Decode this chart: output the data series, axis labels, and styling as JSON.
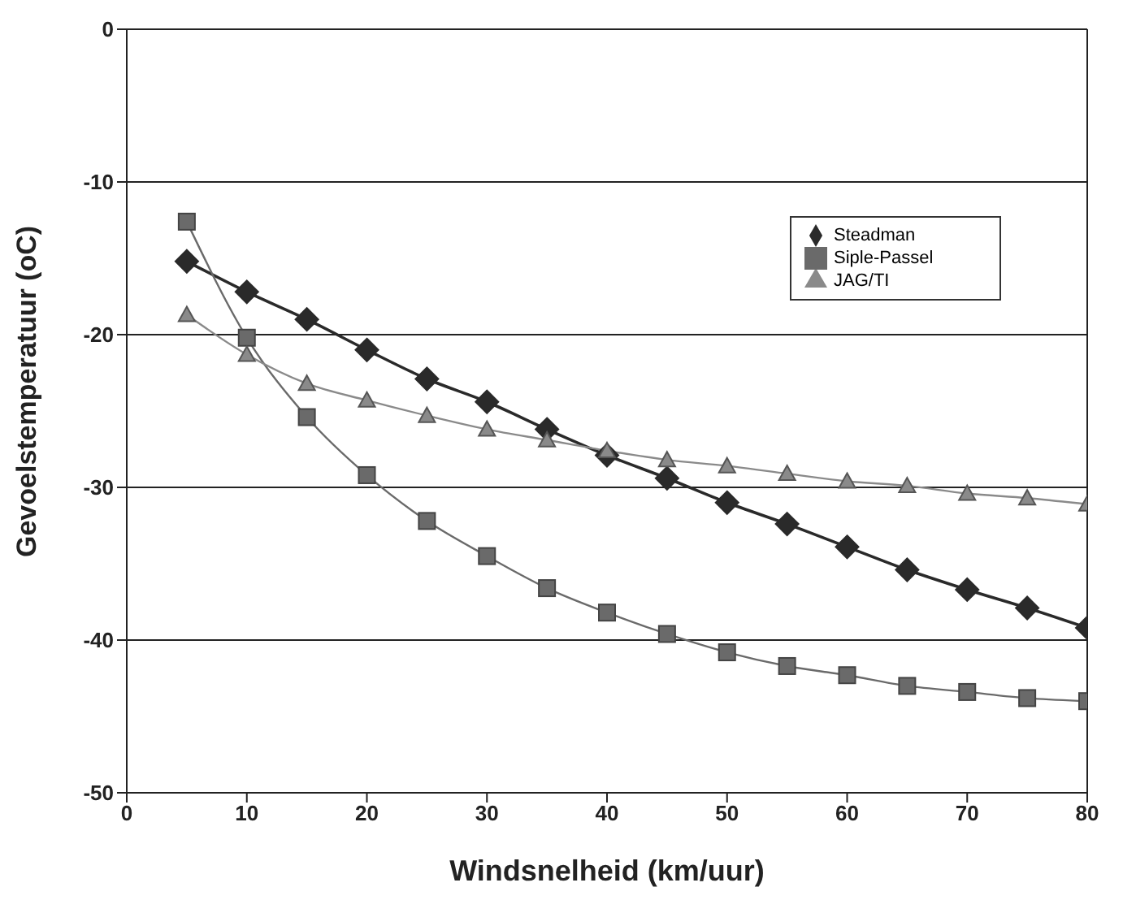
{
  "chart_data": {
    "type": "line",
    "xlabel": "Windsnelheid (km/uur)",
    "ylabel": "Gevoelstemperatuur (oC)",
    "x": [
      5,
      10,
      15,
      20,
      25,
      30,
      35,
      40,
      45,
      50,
      55,
      60,
      65,
      70,
      75,
      80
    ],
    "series": [
      {
        "name": "Steadman",
        "color": "#2a2a2a",
        "marker": "diamond",
        "values": [
          -15.2,
          -17.2,
          -19.0,
          -21.0,
          -22.9,
          -24.4,
          -26.2,
          -27.9,
          -29.4,
          -31.0,
          -32.4,
          -33.9,
          -35.4,
          -36.7,
          -37.9,
          -39.2
        ]
      },
      {
        "name": "Siple-Passel",
        "color": "#6a6a6a",
        "marker": "square",
        "values": [
          -12.6,
          -20.2,
          -25.4,
          -29.2,
          -32.2,
          -34.5,
          -36.6,
          -38.2,
          -39.6,
          -40.8,
          -41.7,
          -42.3,
          -43.0,
          -43.4,
          -43.8,
          -44.0
        ]
      },
      {
        "name": "JAG/TI",
        "color": "#8a8a8a",
        "marker": "triangle",
        "values": [
          -18.7,
          -21.3,
          -23.2,
          -24.3,
          -25.3,
          -26.2,
          -26.9,
          -27.6,
          -28.2,
          -28.6,
          -29.1,
          -29.6,
          -29.9,
          -30.4,
          -30.7,
          -31.1
        ]
      }
    ],
    "xlim": [
      0,
      80
    ],
    "xticks": [
      0,
      10,
      20,
      30,
      40,
      50,
      60,
      70,
      80
    ],
    "ylim": [
      -50,
      0
    ],
    "yticks": [
      -50,
      -40,
      -30,
      -20,
      -10,
      0
    ],
    "grid": "y",
    "legend": "top right",
    "line_style": "solid"
  }
}
